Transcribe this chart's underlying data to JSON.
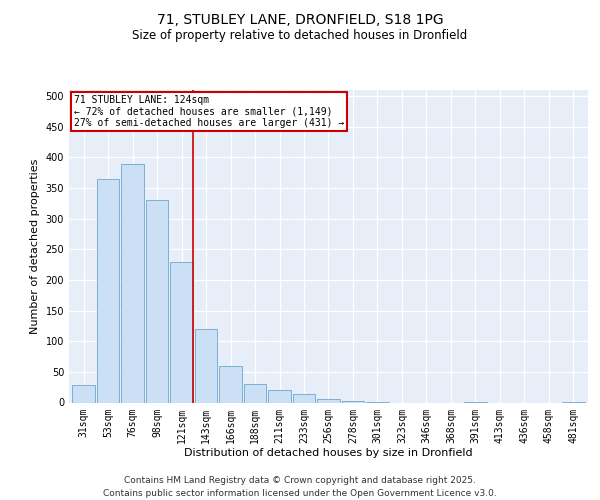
{
  "title1": "71, STUBLEY LANE, DRONFIELD, S18 1PG",
  "title2": "Size of property relative to detached houses in Dronfield",
  "xlabel": "Distribution of detached houses by size in Dronfield",
  "ylabel": "Number of detached properties",
  "categories": [
    "31sqm",
    "53sqm",
    "76sqm",
    "98sqm",
    "121sqm",
    "143sqm",
    "166sqm",
    "188sqm",
    "211sqm",
    "233sqm",
    "256sqm",
    "278sqm",
    "301sqm",
    "323sqm",
    "346sqm",
    "368sqm",
    "391sqm",
    "413sqm",
    "436sqm",
    "458sqm",
    "481sqm"
  ],
  "values": [
    28,
    365,
    390,
    330,
    230,
    120,
    60,
    30,
    20,
    14,
    5,
    2,
    1,
    0,
    0,
    0,
    1,
    0,
    0,
    0,
    1
  ],
  "bar_color": "#cce0f5",
  "bar_edge_color": "#7aafd4",
  "vline_color": "#cc0000",
  "annotation_text": "71 STUBLEY LANE: 124sqm\n← 72% of detached houses are smaller (1,149)\n27% of semi-detached houses are larger (431) →",
  "annotation_box_color": "#ffffff",
  "annotation_box_edgecolor": "#cc0000",
  "ylim": [
    0,
    510
  ],
  "yticks": [
    0,
    50,
    100,
    150,
    200,
    250,
    300,
    350,
    400,
    450,
    500
  ],
  "background_color": "#e8eef8",
  "footer": "Contains HM Land Registry data © Crown copyright and database right 2025.\nContains public sector information licensed under the Open Government Licence v3.0.",
  "title_fontsize": 10,
  "subtitle_fontsize": 8.5,
  "tick_fontsize": 7,
  "label_fontsize": 8,
  "footer_fontsize": 6.5
}
